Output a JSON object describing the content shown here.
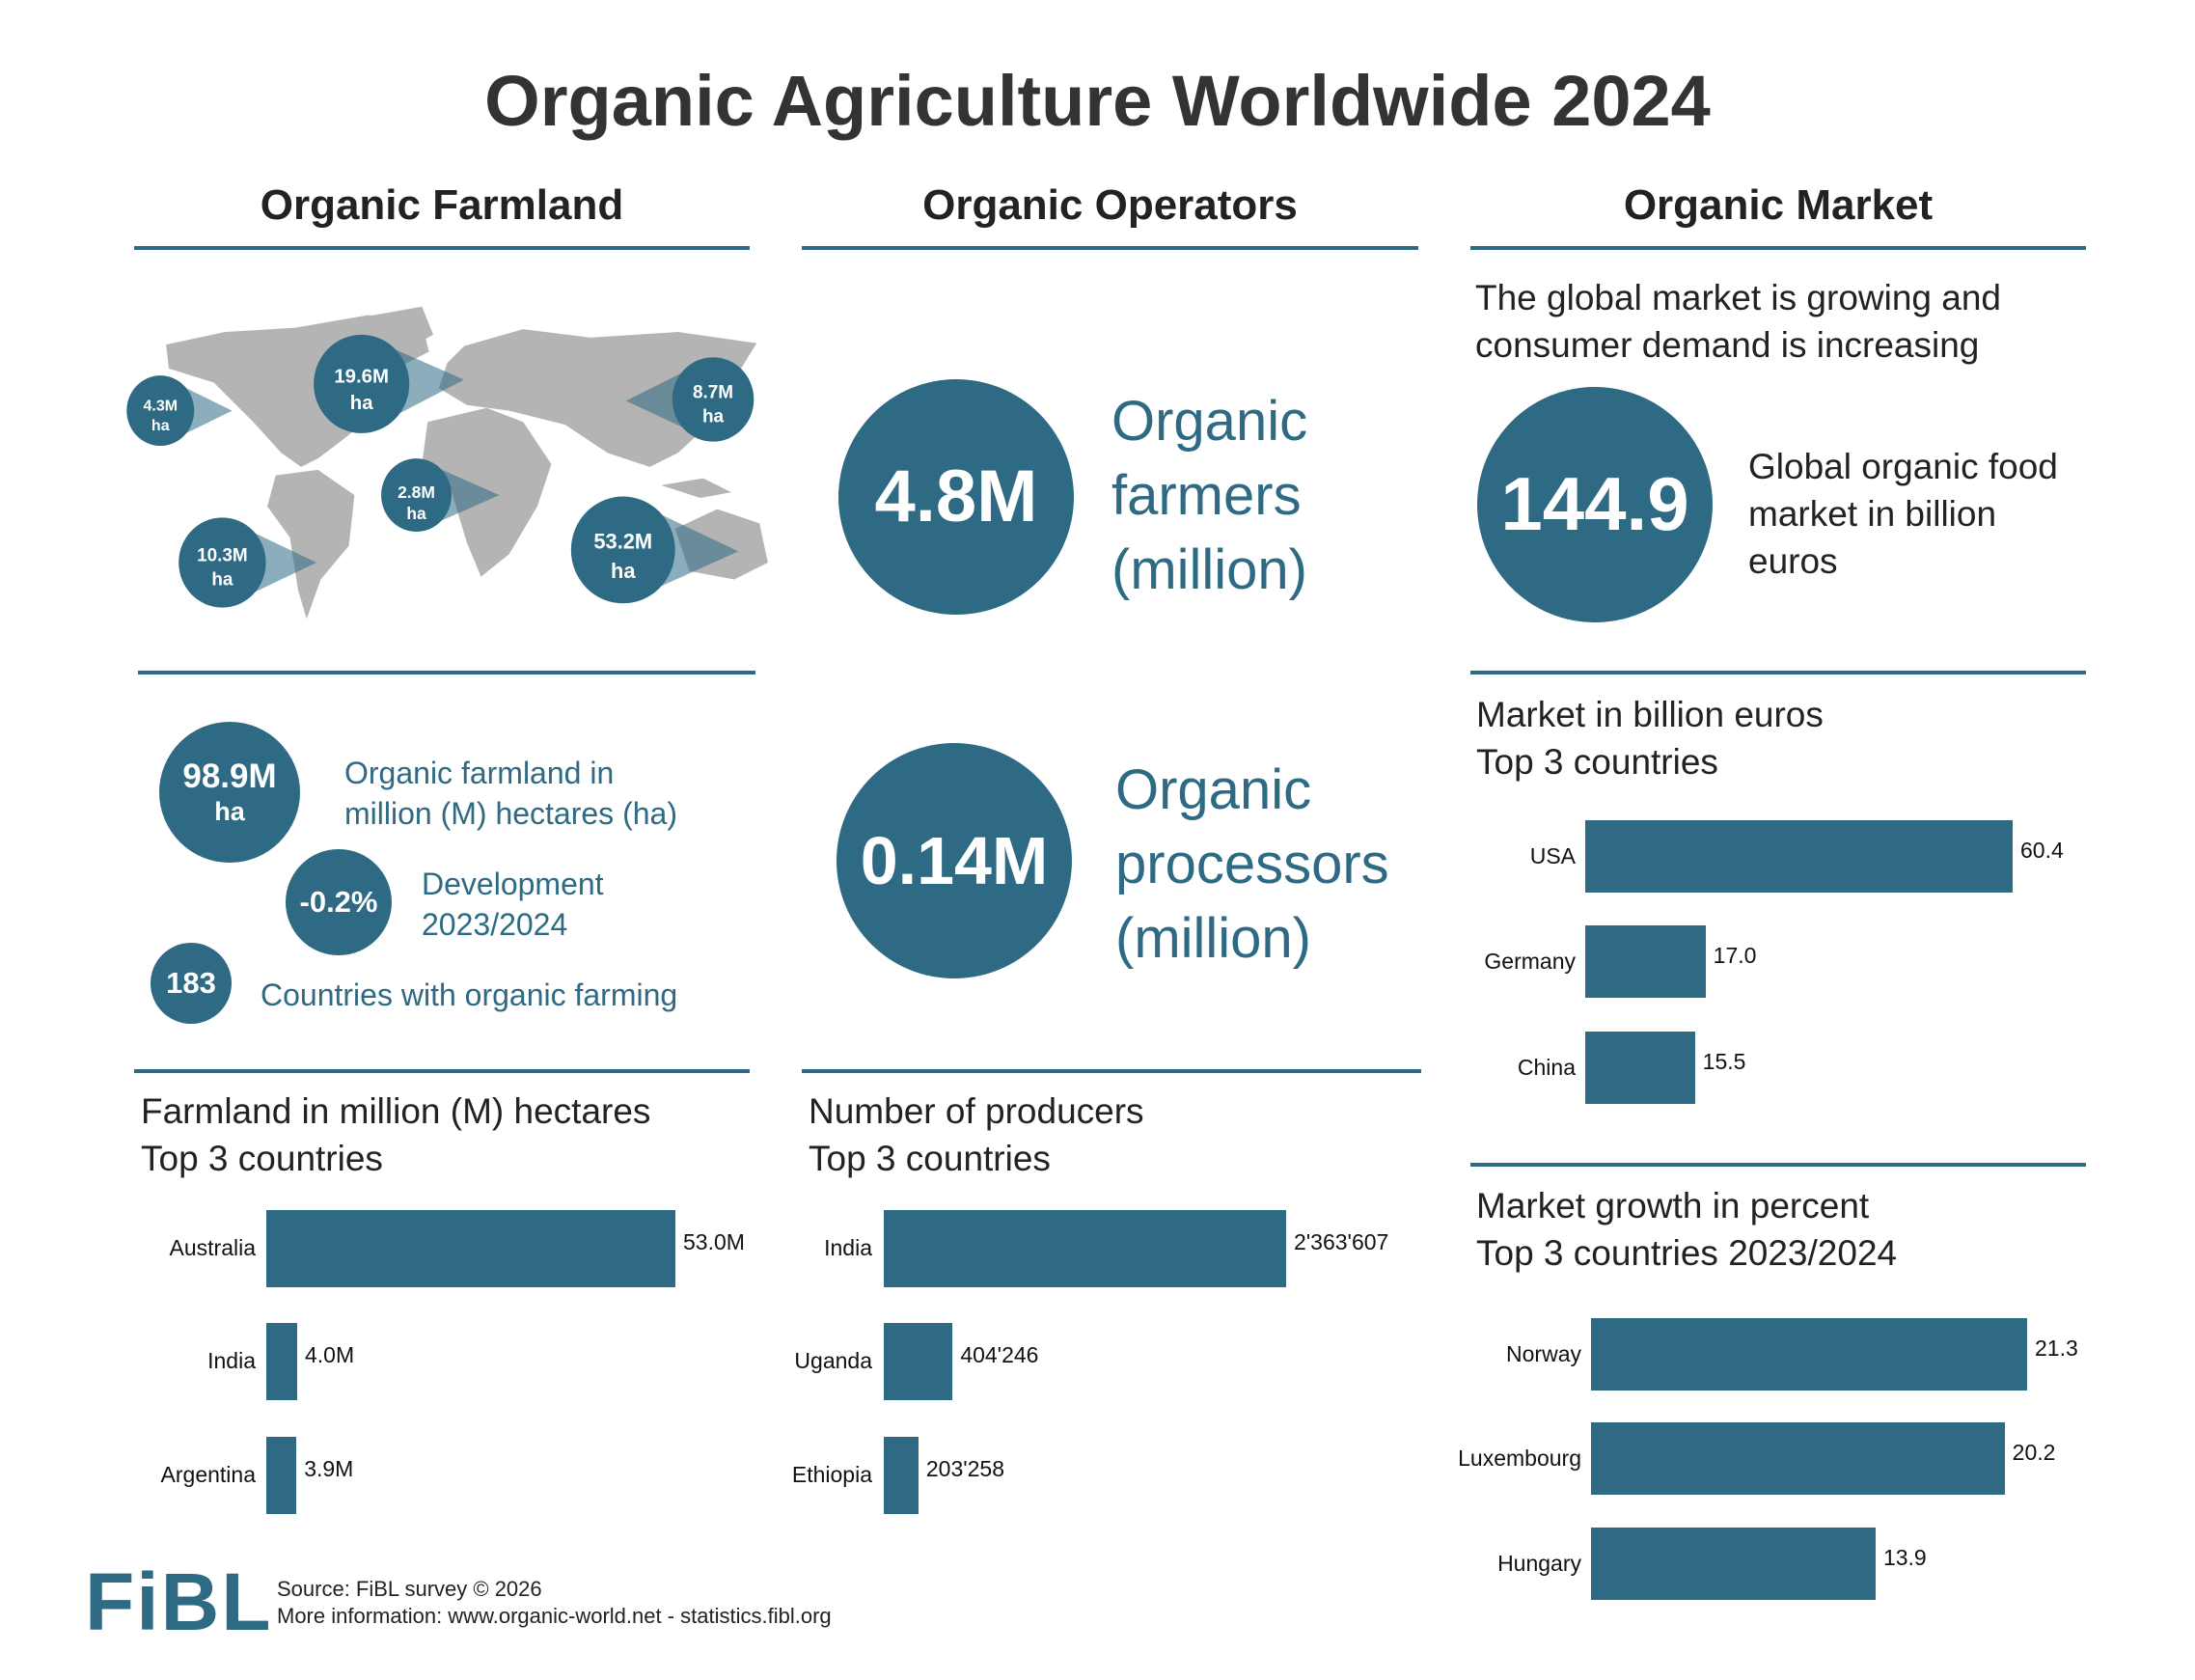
{
  "title": "Organic Agriculture Worldwide 2024",
  "colors": {
    "accent": "#2e6a84",
    "map": "#b4b4b4",
    "heading": "#333333"
  },
  "sections": {
    "farmland": {
      "heading": "Organic Farmland",
      "map_regions": [
        {
          "value": "4.3M",
          "unit": "ha"
        },
        {
          "value": "19.6M",
          "unit": "ha"
        },
        {
          "value": "8.7M",
          "unit": "ha"
        },
        {
          "value": "2.8M",
          "unit": "ha"
        },
        {
          "value": "10.3M",
          "unit": "ha"
        },
        {
          "value": "53.2M",
          "unit": "ha"
        }
      ],
      "total": {
        "value": "98.9M",
        "unit": "ha",
        "line1": "Organic farmland in",
        "line2": "million (M) hectares (ha)"
      },
      "development": {
        "value": "-0.2%",
        "line1": "Development",
        "line2": "2023/2024"
      },
      "countries": {
        "value": "183",
        "label": "Countries with organic farming"
      },
      "chart_heading1": "Farmland in million (M) hectares",
      "chart_heading2": "Top 3 countries"
    },
    "operators": {
      "heading": "Organic Operators",
      "farmers": {
        "value": "4.8M",
        "line1": "Organic",
        "line2": "farmers",
        "line3": "(million)"
      },
      "processors": {
        "value": "0.14M",
        "line1": "Organic",
        "line2": "processors",
        "line3": "(million)"
      },
      "chart_heading1": "Number of producers",
      "chart_heading2": "Top 3 countries"
    },
    "market": {
      "heading": "Organic Market",
      "intro1": "The global market is growing and",
      "intro2": "consumer demand is increasing",
      "global": {
        "value": "144.9",
        "line1": "Global organic food",
        "line2": "market in billion",
        "line3": "euros"
      },
      "chart_heading1": "Market in billion euros",
      "chart_heading2": "Top 3 countries",
      "growth_heading1": "Market growth in percent",
      "growth_heading2": "Top 3 countries 2023/2024"
    }
  },
  "footer": {
    "logo": "FiBL",
    "source": "Source: FiBL survey © 2026",
    "more": "More information: www.organic-world.net - statistics.fibl.org"
  },
  "chart_data": [
    {
      "type": "bar",
      "orientation": "horizontal",
      "categories": [
        "Australia",
        "India",
        "Argentina"
      ],
      "values": [
        53.0,
        4.0,
        3.9
      ],
      "labels": [
        "53.0M",
        "4.0M",
        "3.9M"
      ]
    },
    {
      "type": "bar",
      "orientation": "horizontal",
      "categories": [
        "India",
        "Uganda",
        "Ethiopia"
      ],
      "values": [
        2363607,
        404246,
        203258
      ],
      "labels": [
        "2'363'607",
        "404'246",
        "203'258"
      ]
    },
    {
      "type": "bar",
      "orientation": "horizontal",
      "categories": [
        "USA",
        "Germany",
        "China"
      ],
      "values": [
        60.4,
        17.0,
        15.5
      ],
      "labels": [
        "60.4",
        "17.0",
        "15.5"
      ]
    },
    {
      "type": "bar",
      "orientation": "horizontal",
      "categories": [
        "Norway",
        "Luxembourg",
        "Hungary"
      ],
      "values": [
        21.3,
        20.2,
        13.9
      ],
      "labels": [
        "21.3",
        "20.2",
        "13.9"
      ]
    }
  ]
}
